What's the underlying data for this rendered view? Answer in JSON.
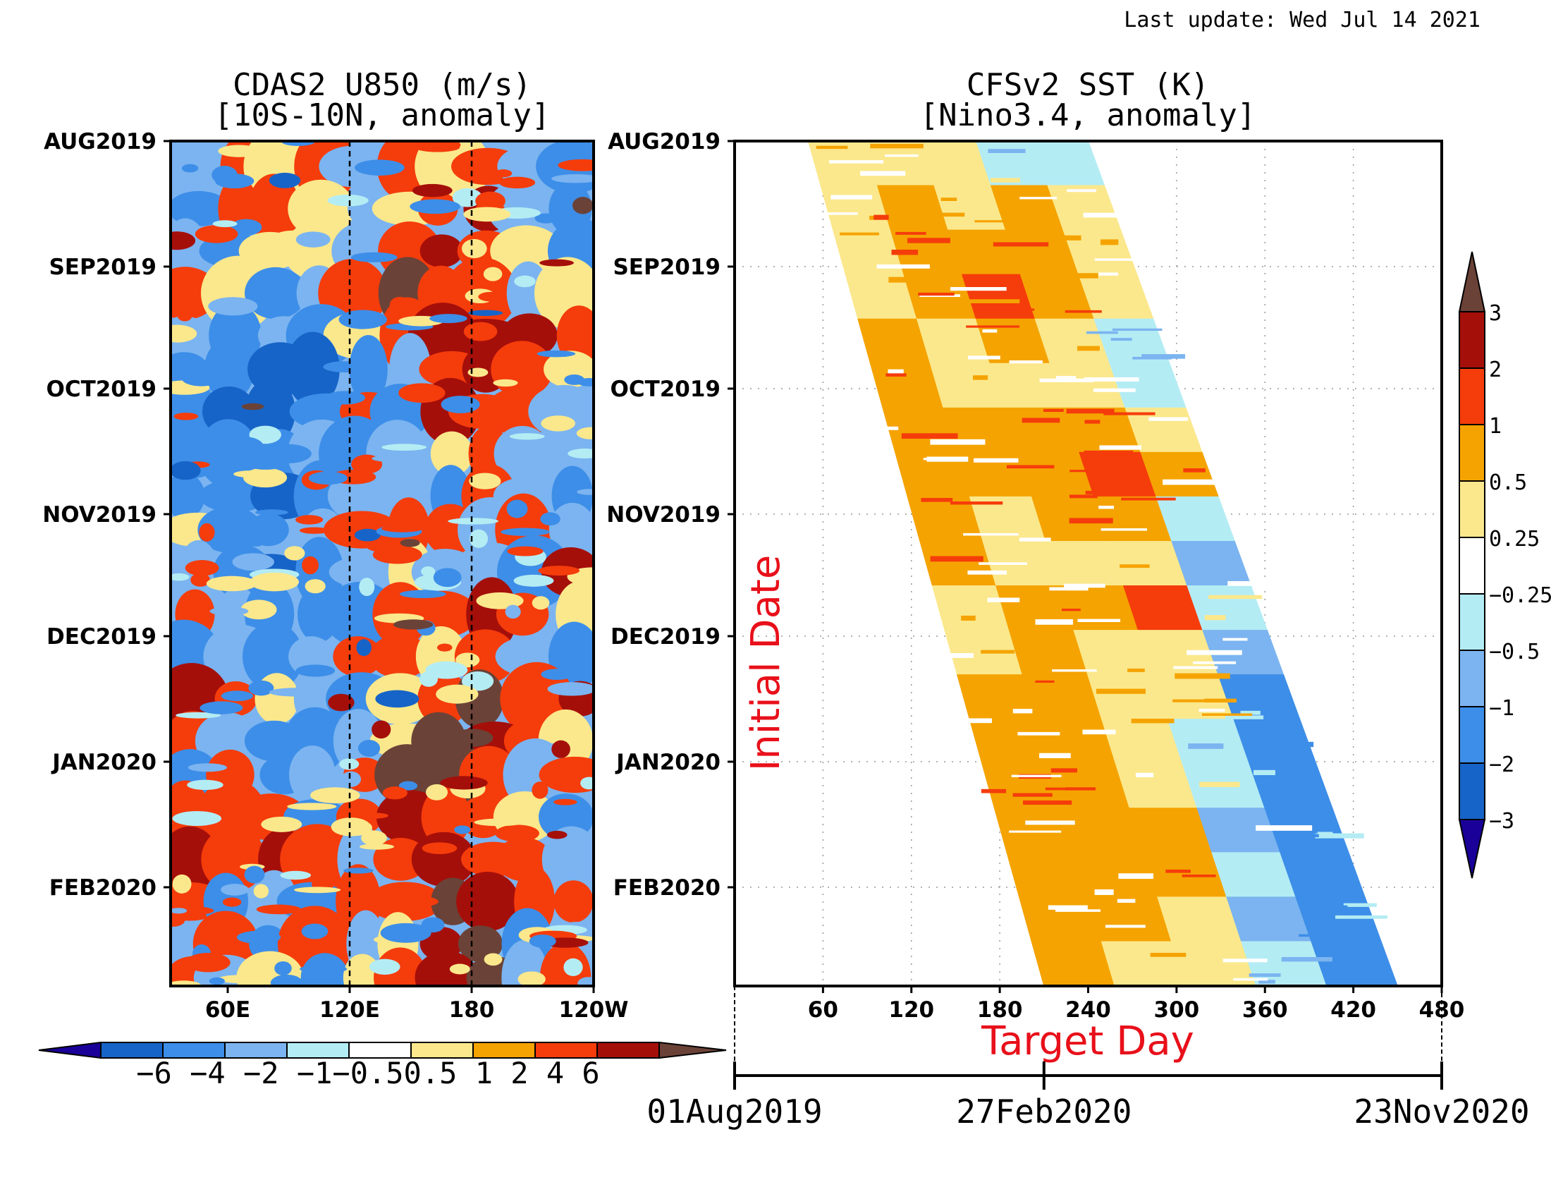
{
  "last_update": "Last update: Wed Jul 14 2021",
  "chart_data": [
    {
      "type": "heatmap",
      "title": "CDAS2 U850 (m/s)",
      "subtitle": "[10S-10N, anomaly]",
      "x_ticks": [
        "60E",
        "120E",
        "180",
        "120W"
      ],
      "y_ticks": [
        "AUG2019",
        "SEP2019",
        "OCT2019",
        "NOV2019",
        "DEC2019",
        "JAN2020",
        "FEB2020"
      ],
      "reference_lines_x": [
        "120E",
        "180"
      ],
      "colorbar": {
        "orientation": "horizontal",
        "levels": [
          "-6",
          "-4",
          "-2",
          "-1",
          "-0.5",
          "0.5",
          "1",
          "2",
          "4",
          "6"
        ],
        "tick_label_text": "−6 −4 −2 −1−0.50.5  1   2   4   6",
        "colors": [
          "#1a0099",
          "#1764c8",
          "#3d8ee8",
          "#7bb4f0",
          "#b4ecf4",
          "#ffffff",
          "#fbe88c",
          "#f5a300",
          "#f53c0b",
          "#a50f0a",
          "#6b4237"
        ]
      },
      "bands": [
        {
          "y": 0.03,
          "v": [
            -1,
            2,
            0.5,
            2,
            -1,
            2,
            0.5,
            2,
            -1,
            -2
          ]
        },
        {
          "y": 0.08,
          "v": [
            -2,
            2,
            2,
            0.5,
            -1,
            0.5,
            2,
            4,
            -1,
            -2
          ]
        },
        {
          "y": 0.13,
          "v": [
            -1,
            -2,
            0.5,
            0.5,
            -1,
            2,
            4,
            2,
            0.5,
            -2
          ]
        },
        {
          "y": 0.18,
          "v": [
            2,
            0.5,
            -2,
            -1,
            2,
            6,
            2,
            2,
            -1,
            0.5
          ]
        },
        {
          "y": 0.23,
          "v": [
            -1,
            -2,
            -1,
            -2,
            0.5,
            2,
            4,
            4,
            4,
            2
          ]
        },
        {
          "y": 0.27,
          "v": [
            -2,
            -2,
            -4,
            -4,
            -2,
            -1,
            2,
            4,
            2,
            0.5
          ]
        },
        {
          "y": 0.32,
          "v": [
            -2,
            -4,
            -4,
            -2,
            2,
            -2,
            4,
            2,
            2,
            -1
          ]
        },
        {
          "y": 0.37,
          "v": [
            -2,
            -2,
            -2,
            -1,
            -2,
            -1,
            0.5,
            2,
            -1,
            -1
          ]
        },
        {
          "y": 0.42,
          "v": [
            -2,
            -2,
            -4,
            -2,
            -1,
            -1,
            -2,
            2,
            -1,
            -2
          ]
        },
        {
          "y": 0.46,
          "v": [
            0.5,
            -2,
            -2,
            -1,
            2,
            2,
            2,
            -1,
            2,
            -1
          ]
        },
        {
          "y": 0.51,
          "v": [
            -1,
            -2,
            -4,
            -2,
            -1,
            0.5,
            -1,
            -1,
            -2,
            4
          ]
        },
        {
          "y": 0.56,
          "v": [
            2,
            -1,
            -2,
            -2,
            -2,
            2,
            2,
            4,
            2,
            0.5
          ]
        },
        {
          "y": 0.61,
          "v": [
            -2,
            -1,
            -2,
            -1,
            2,
            2,
            0.5,
            2,
            -1,
            -2
          ]
        },
        {
          "y": 0.66,
          "v": [
            4,
            2,
            0.5,
            -1,
            -2,
            0.5,
            2,
            6,
            2,
            4
          ]
        },
        {
          "y": 0.71,
          "v": [
            2,
            -1,
            -2,
            -2,
            -1,
            0.5,
            6,
            4,
            2,
            0.5
          ]
        },
        {
          "y": 0.75,
          "v": [
            -2,
            2,
            -2,
            -1,
            2,
            6,
            6,
            2,
            -1,
            2
          ]
        },
        {
          "y": 0.8,
          "v": [
            2,
            2,
            2,
            -2,
            2,
            4,
            2,
            2,
            0.5,
            -2
          ]
        },
        {
          "y": 0.85,
          "v": [
            4,
            2,
            4,
            2,
            -1,
            2,
            4,
            2,
            2,
            -1
          ]
        },
        {
          "y": 0.9,
          "v": [
            2,
            -2,
            -1,
            -2,
            2,
            2,
            6,
            4,
            2,
            2
          ]
        },
        {
          "y": 0.95,
          "v": [
            -1,
            2,
            -2,
            2,
            -1,
            0.5,
            4,
            6,
            -2,
            -1
          ]
        },
        {
          "y": 0.99,
          "v": [
            2,
            -1,
            0.5,
            -2,
            0.5,
            2,
            4,
            6,
            -1,
            2
          ]
        }
      ]
    },
    {
      "type": "heatmap",
      "title": "CFSv2 SST (K)",
      "subtitle": "[Nino3.4, anomaly]",
      "y_label": "Initial Date",
      "x_label": "Target Day",
      "x_range": [
        0,
        480
      ],
      "x_ticks": [
        "60",
        "120",
        "180",
        "240",
        "300",
        "360",
        "420",
        "480"
      ],
      "y_ticks": [
        "AUG2019",
        "SEP2019",
        "OCT2019",
        "NOV2019",
        "DEC2019",
        "JAN2020",
        "FEB2020"
      ],
      "date_axis": [
        "01Aug2019",
        "27Feb2020",
        "23Nov2020"
      ],
      "colorbar": {
        "orientation": "vertical",
        "levels": [
          "3",
          "2",
          "1",
          "0.5",
          "0.25",
          "−0.25",
          "−0.5",
          "−1",
          "−2",
          "−3"
        ],
        "colors": [
          "#6b4237",
          "#a50f0a",
          "#f53c0b",
          "#f5a300",
          "#fbe88c",
          "#ffffff",
          "#b4ecf4",
          "#7bb4f0",
          "#3d8ee8",
          "#1764c8",
          "#1a0099"
        ]
      },
      "bands": [
        {
          "y": 0.04,
          "v": [
            0.25,
            0.25,
            0.25,
            -0.25,
            -0.25
          ]
        },
        {
          "y": 0.09,
          "v": [
            0.25,
            0.5,
            0.25,
            0.5,
            0.25
          ]
        },
        {
          "y": 0.14,
          "v": [
            0.25,
            0.5,
            0.5,
            0.5,
            0.25
          ]
        },
        {
          "y": 0.2,
          "v": [
            0.25,
            0.5,
            1,
            0.5,
            0.25
          ]
        },
        {
          "y": 0.25,
          "v": [
            0.5,
            0.25,
            0.5,
            0.25,
            -0.25
          ]
        },
        {
          "y": 0.31,
          "v": [
            0.5,
            0.25,
            0.25,
            0.25,
            -0.25
          ]
        },
        {
          "y": 0.36,
          "v": [
            0.5,
            0.5,
            0.5,
            0.5,
            0.25
          ]
        },
        {
          "y": 0.41,
          "v": [
            0.5,
            0.5,
            0.5,
            1,
            0.5
          ]
        },
        {
          "y": 0.46,
          "v": [
            0.5,
            0.25,
            0.5,
            0.5,
            -0.25
          ]
        },
        {
          "y": 0.52,
          "v": [
            0.5,
            0.25,
            0.25,
            0.25,
            -0.5
          ]
        },
        {
          "y": 0.57,
          "v": [
            0.25,
            0.5,
            0.5,
            1,
            -0.25
          ]
        },
        {
          "y": 0.62,
          "v": [
            0.25,
            0.5,
            0.25,
            0.25,
            -0.5
          ]
        },
        {
          "y": 0.68,
          "v": [
            0.5,
            0.5,
            0.25,
            0.25,
            -1
          ]
        },
        {
          "y": 0.73,
          "v": [
            0.5,
            0.5,
            0.25,
            -0.25,
            -1
          ]
        },
        {
          "y": 0.78,
          "v": [
            0.5,
            0.5,
            0.25,
            -0.25,
            -1
          ]
        },
        {
          "y": 0.84,
          "v": [
            0.5,
            0.5,
            0.5,
            -0.5,
            -1
          ]
        },
        {
          "y": 0.89,
          "v": [
            0.5,
            0.5,
            0.5,
            -0.25,
            -1
          ]
        },
        {
          "y": 0.94,
          "v": [
            0.5,
            0.5,
            0.25,
            -0.5,
            -1
          ]
        },
        {
          "y": 0.99,
          "v": [
            0.5,
            0.25,
            0.25,
            -0.25,
            -1
          ]
        }
      ]
    }
  ]
}
